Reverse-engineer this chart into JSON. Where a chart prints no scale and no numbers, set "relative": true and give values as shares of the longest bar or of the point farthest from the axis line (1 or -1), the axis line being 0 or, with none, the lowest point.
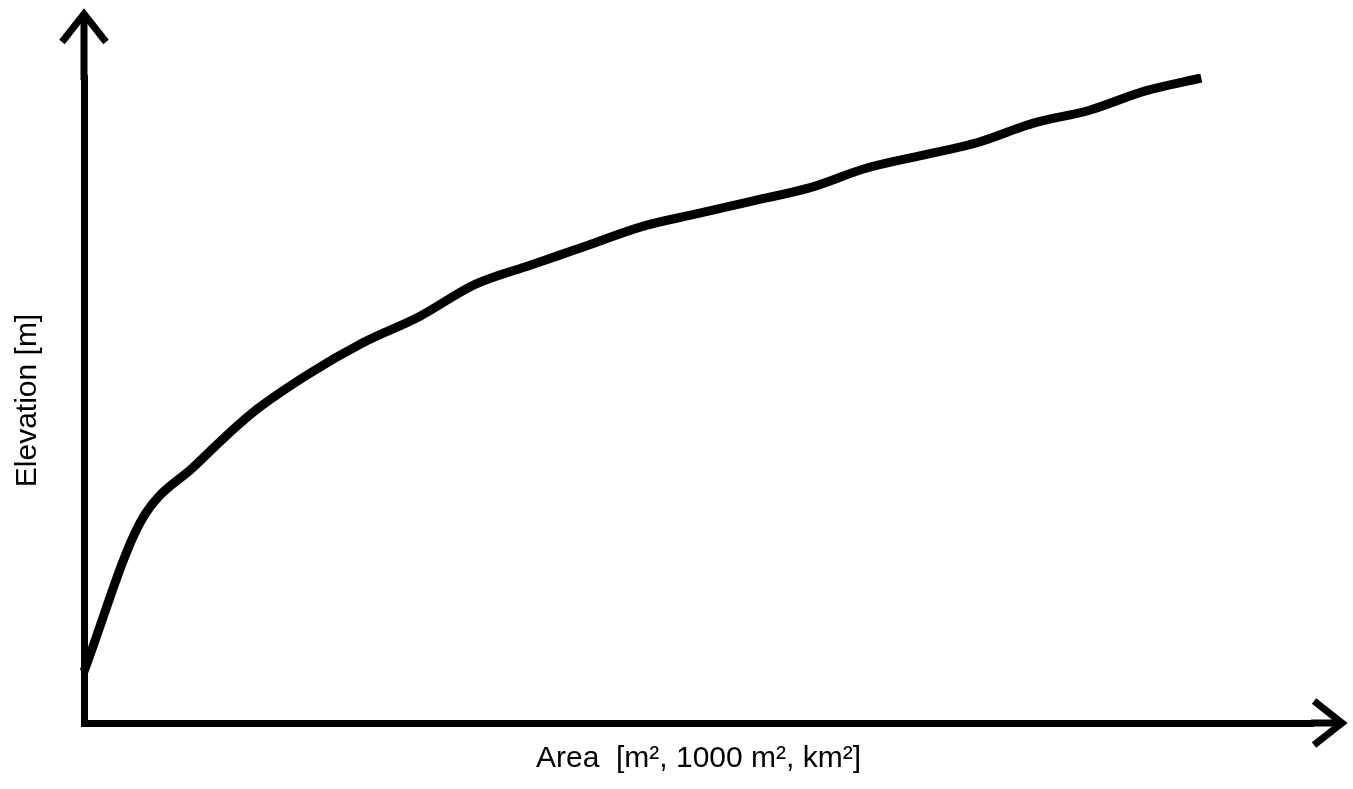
{
  "chart_data": {
    "type": "line",
    "xlabel": "Area  [m², 1000 m², km²]",
    "ylabel": "Elevation [m]",
    "relative": true,
    "marker": "none",
    "categories": [
      null,
      null,
      null,
      null,
      null,
      null,
      null,
      null,
      null,
      null,
      null,
      null,
      null,
      null,
      null,
      null,
      null,
      null,
      null,
      null,
      null,
      null,
      null
    ],
    "series": [
      {
        "color": "#000000",
        "values": [
          0.08,
          0.31,
          0.4,
          0.48,
          0.54,
          0.59,
          0.63,
          0.68,
          0.71,
          0.74,
          0.77,
          0.79,
          0.81,
          0.83,
          0.86,
          0.88,
          0.9,
          0.93,
          0.95,
          0.98,
          1.0,
          null,
          null
        ]
      }
    ]
  }
}
